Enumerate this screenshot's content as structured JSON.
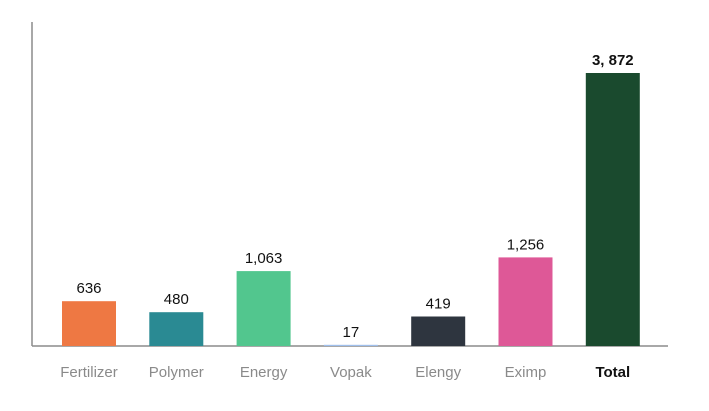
{
  "chart_data": {
    "type": "bar",
    "title": "",
    "xlabel": "",
    "ylabel": "",
    "ylim": [
      0,
      3872
    ],
    "grid": false,
    "categories": [
      "Fertilizer",
      "Polymer",
      "Energy",
      "Vopak",
      "Elengy",
      "Eximp",
      "Total"
    ],
    "values": [
      636,
      480,
      1063,
      17,
      419,
      1256,
      3872
    ],
    "value_labels": [
      "636",
      "480",
      "1,063",
      "17",
      "419",
      "1,256",
      "3, 872"
    ],
    "bold": [
      false,
      false,
      false,
      false,
      false,
      false,
      true
    ],
    "colors": [
      "#ee7843",
      "#2a8a93",
      "#52c68e",
      "#9fbfec",
      "#2e353f",
      "#de5897",
      "#1a4a2e"
    ]
  }
}
